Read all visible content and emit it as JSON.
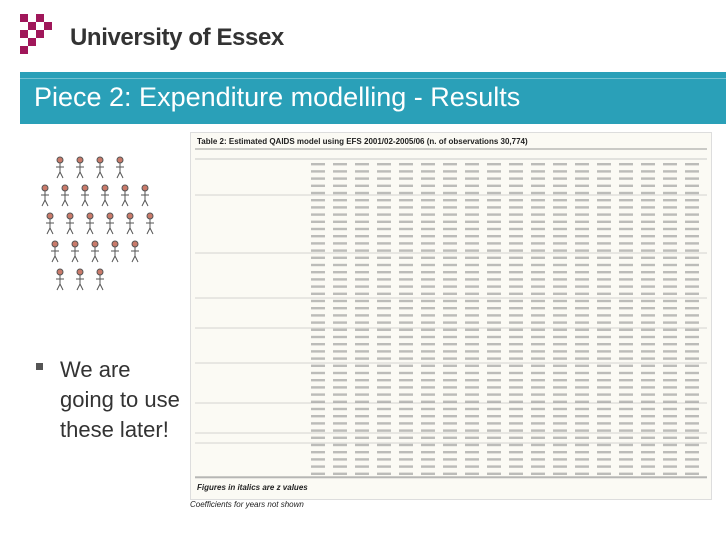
{
  "header": {
    "logo_name": "university-of-essex-logo",
    "university_name": "University of Essex"
  },
  "banner": {
    "title": "Piece 2: Expenditure modelling - Results",
    "color": "#2aa0b8"
  },
  "bullet": {
    "text": "We are going to use these later!"
  },
  "table": {
    "title": "Table 2: Estimated QAIDS model using EFS 2001/02-2005/06 (n. of observations 30,774)",
    "footnote": "Figures in italics are z values",
    "caption": "Coefficients for years not shown"
  },
  "colors": {
    "logo_magenta": "#a0175a",
    "banner": "#2aa0b8",
    "text": "#333333"
  }
}
